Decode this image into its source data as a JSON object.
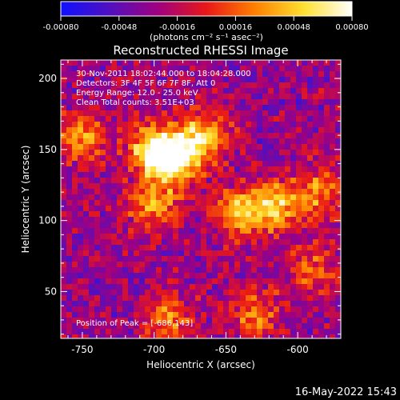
{
  "colorbar": {
    "tick_labels": [
      "-0.00080",
      "-0.00048",
      "-0.00016",
      "0.00016",
      "0.00048",
      "0.00080"
    ],
    "unit_label": "(photons cm⁻² s⁻¹ asec⁻²)",
    "range": [
      -0.0008,
      0.0008
    ],
    "colors": [
      "#1010ff",
      "#5010c0",
      "#a00080",
      "#e81818",
      "#ff8000",
      "#ffe030",
      "#ffffff"
    ]
  },
  "title": "Reconstructed RHESSI Image",
  "annotations": [
    "30-Nov-2011 18:02:44.000 to 18:04:28.000",
    "Detectors: 3F 4F 5F 6F 7F 8F, Att 0",
    "Energy Range: 12.0 - 25.0 keV",
    "Clean     Total counts: 3.51E+03"
  ],
  "peak_text": "Position of Peak = [-686,143]",
  "footer_timestamp": "16-May-2022 15:43",
  "chart_data": {
    "type": "heatmap",
    "title": "Reconstructed RHESSI Image",
    "xlabel": "Heliocentric X (arcsec)",
    "ylabel": "Heliocentric Y (arcsec)",
    "xlim": [
      -765,
      -570
    ],
    "ylim": [
      17,
      213
    ],
    "x_ticks": [
      -750,
      -700,
      -650,
      -600
    ],
    "y_ticks": [
      50,
      100,
      150,
      200
    ],
    "x_tick_labels": [
      "-750",
      "-700",
      "-650",
      "-600"
    ],
    "y_tick_labels": [
      "50",
      "100",
      "150",
      "200"
    ],
    "peak": [
      -686,
      143
    ],
    "bright_sources": [
      {
        "x": -686,
        "y": 143,
        "intensity": 1.0
      },
      {
        "x": -700,
        "y": 150,
        "intensity": 0.9
      },
      {
        "x": -665,
        "y": 160,
        "intensity": 0.8
      },
      {
        "x": -640,
        "y": 105,
        "intensity": 0.75
      },
      {
        "x": -615,
        "y": 110,
        "intensity": 0.7
      },
      {
        "x": -750,
        "y": 158,
        "intensity": 0.55
      },
      {
        "x": -700,
        "y": 110,
        "intensity": 0.6
      },
      {
        "x": -690,
        "y": 30,
        "intensity": 0.55
      },
      {
        "x": -630,
        "y": 35,
        "intensity": 0.5
      },
      {
        "x": -585,
        "y": 120,
        "intensity": 0.55
      },
      {
        "x": -590,
        "y": 65,
        "intensity": 0.45
      }
    ]
  }
}
